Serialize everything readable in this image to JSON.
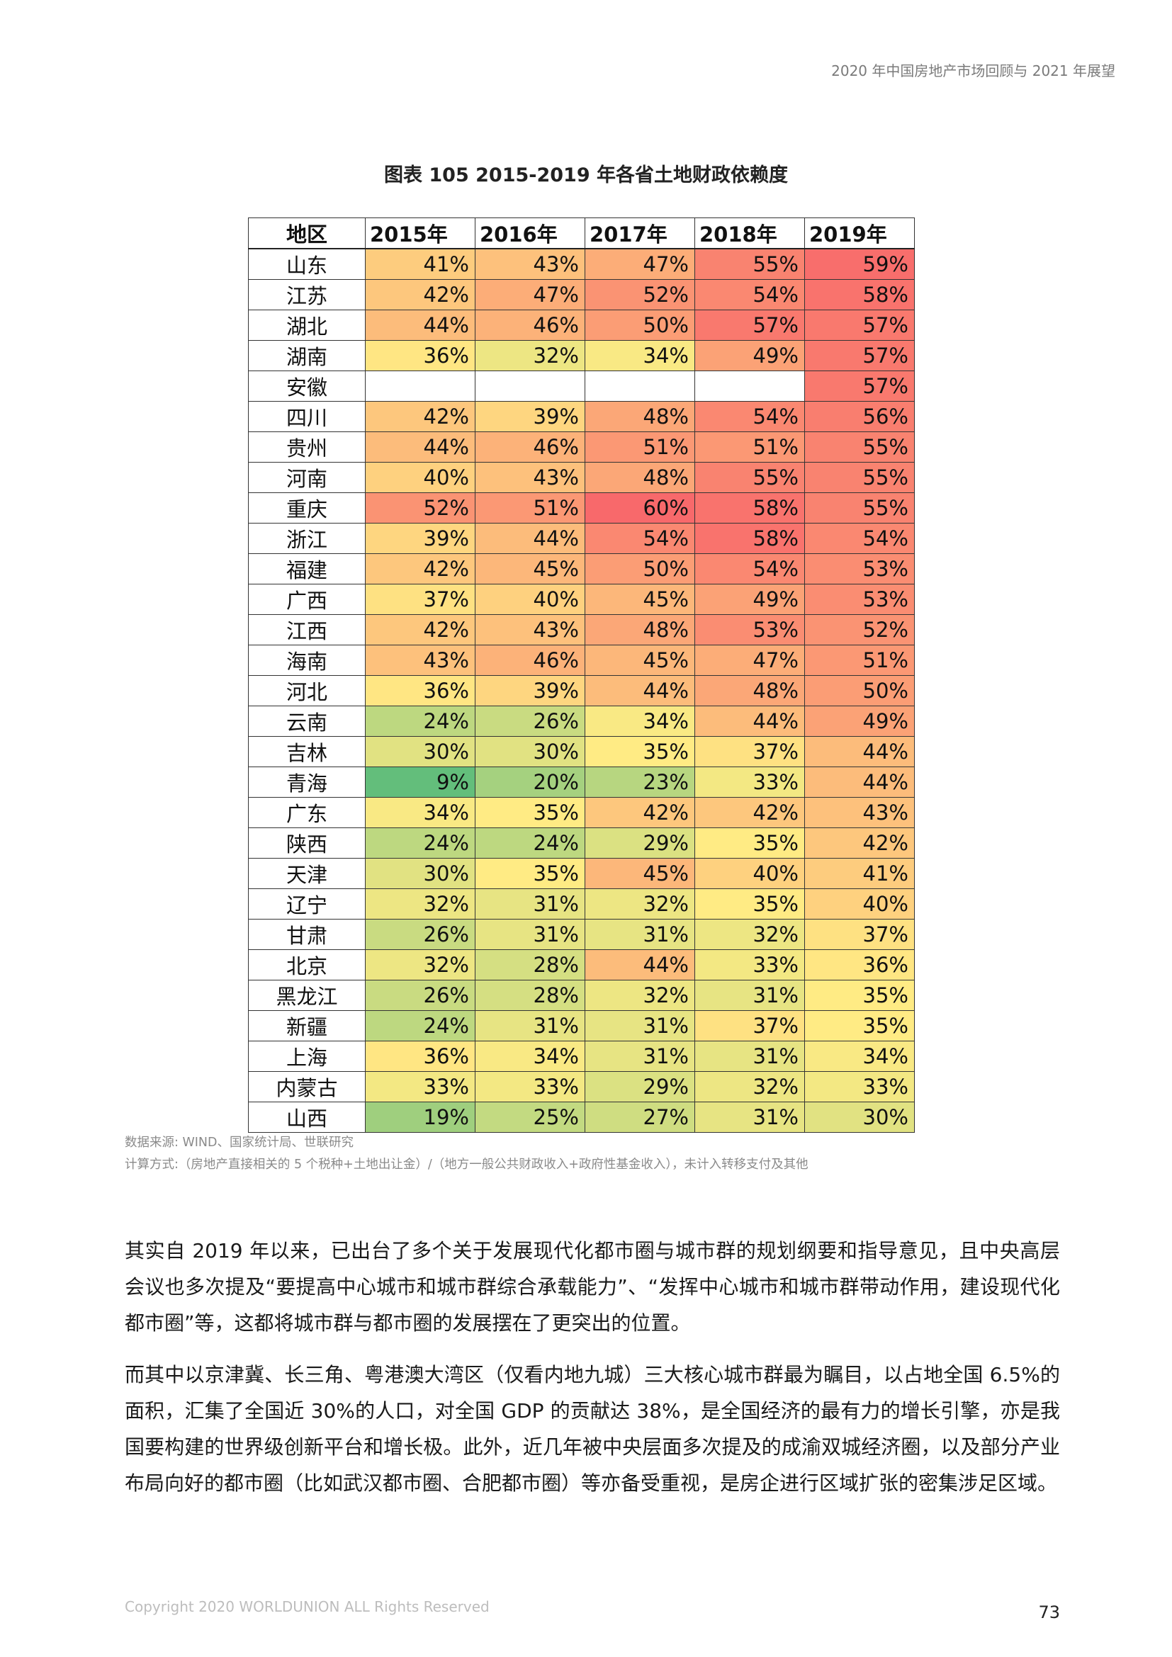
{
  "header": {
    "running_title": "2020 年中国房地产市场回顾与 2021 年展望"
  },
  "figure": {
    "title": "图表 105    2015-2019 年各省土地财政依赖度",
    "columns": [
      "地区",
      "2015年",
      "2016年",
      "2017年",
      "2018年",
      "2019年"
    ],
    "rows": [
      {
        "region": "山东",
        "values": [
          41,
          43,
          47,
          55,
          59
        ]
      },
      {
        "region": "江苏",
        "values": [
          42,
          47,
          52,
          54,
          58
        ]
      },
      {
        "region": "湖北",
        "values": [
          44,
          46,
          50,
          57,
          57
        ]
      },
      {
        "region": "湖南",
        "values": [
          36,
          32,
          34,
          49,
          57
        ]
      },
      {
        "region": "安徽",
        "values": [
          null,
          null,
          null,
          null,
          57
        ]
      },
      {
        "region": "四川",
        "values": [
          42,
          39,
          48,
          54,
          56
        ]
      },
      {
        "region": "贵州",
        "values": [
          44,
          46,
          51,
          51,
          55
        ]
      },
      {
        "region": "河南",
        "values": [
          40,
          43,
          48,
          55,
          55
        ]
      },
      {
        "region": "重庆",
        "values": [
          52,
          51,
          60,
          58,
          55
        ]
      },
      {
        "region": "浙江",
        "values": [
          39,
          44,
          54,
          58,
          54
        ]
      },
      {
        "region": "福建",
        "values": [
          42,
          45,
          50,
          54,
          53
        ]
      },
      {
        "region": "广西",
        "values": [
          37,
          40,
          45,
          49,
          53
        ]
      },
      {
        "region": "江西",
        "values": [
          42,
          43,
          48,
          53,
          52
        ]
      },
      {
        "region": "海南",
        "values": [
          43,
          46,
          45,
          47,
          51
        ]
      },
      {
        "region": "河北",
        "values": [
          36,
          39,
          44,
          48,
          50
        ]
      },
      {
        "region": "云南",
        "values": [
          24,
          26,
          34,
          44,
          49
        ]
      },
      {
        "region": "吉林",
        "values": [
          30,
          30,
          35,
          37,
          44
        ]
      },
      {
        "region": "青海",
        "values": [
          9,
          20,
          23,
          33,
          44
        ]
      },
      {
        "region": "广东",
        "values": [
          34,
          35,
          42,
          42,
          43
        ]
      },
      {
        "region": "陕西",
        "values": [
          24,
          24,
          29,
          35,
          42
        ]
      },
      {
        "region": "天津",
        "values": [
          30,
          35,
          45,
          40,
          41
        ]
      },
      {
        "region": "辽宁",
        "values": [
          32,
          31,
          32,
          35,
          40
        ]
      },
      {
        "region": "甘肃",
        "values": [
          26,
          31,
          31,
          32,
          37
        ]
      },
      {
        "region": "北京",
        "values": [
          32,
          28,
          44,
          33,
          36
        ]
      },
      {
        "region": "黑龙江",
        "values": [
          26,
          28,
          32,
          31,
          35
        ]
      },
      {
        "region": "新疆",
        "values": [
          24,
          31,
          31,
          37,
          35
        ]
      },
      {
        "region": "上海",
        "values": [
          36,
          34,
          31,
          31,
          34
        ]
      },
      {
        "region": "内蒙古",
        "values": [
          33,
          33,
          29,
          32,
          33
        ]
      },
      {
        "region": "山西",
        "values": [
          19,
          25,
          27,
          31,
          30
        ]
      }
    ],
    "value_suffix": "%",
    "color_scale": {
      "low": "#63be7b",
      "mid": "#ffeb84",
      "high": "#f8696b",
      "min": 9,
      "mid_value": 35,
      "max": 60
    },
    "notes": [
      "数据来源: WIND、国家统计局、世联研究",
      "计算方式:（房地产直接相关的 5 个税种+土地出让金）/（地方一般公共财政收入+政府性基金收入），未计入转移支付及其他"
    ]
  },
  "body": {
    "paragraphs": [
      "其实自 2019 年以来，已出台了多个关于发展现代化都市圈与城市群的规划纲要和指导意见，且中央高层会议也多次提及“要提高中心城市和城市群综合承载能力”、“发挥中心城市和城市群带动作用，建设现代化都市圈”等，这都将城市群与都市圈的发展摆在了更突出的位置。",
      "而其中以京津冀、长三角、粤港澳大湾区（仅看内地九城）三大核心城市群最为瞩目，以占地全国 6.5%的面积，汇集了全国近 30%的人口，对全国 GDP 的贡献达 38%，是全国经济的最有力的增长引擎，亦是我国要构建的世界级创新平台和增长极。此外，近几年被中央层面多次提及的成渝双城经济圈，以及部分产业布局向好的都市圈（比如武汉都市圈、合肥都市圈）等亦备受重视，是房企进行区域扩张的密集涉足区域。"
    ]
  },
  "footer": {
    "copyright": "Copyright 2020 WORLDUNION ALL Rights Reserved",
    "page_number": "73"
  }
}
